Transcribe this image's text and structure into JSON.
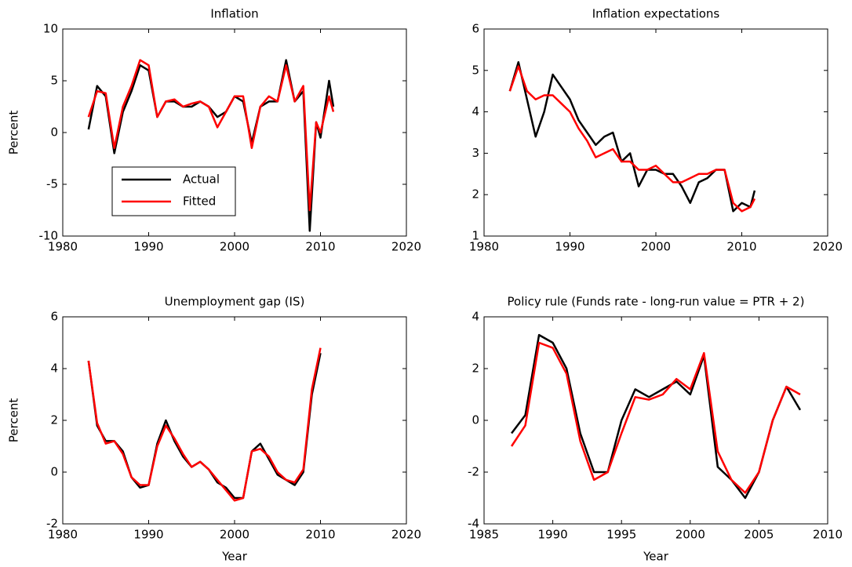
{
  "chart_data": [
    {
      "type": "line",
      "title": "Inflation",
      "ylabel": "Percent",
      "x": [
        1983,
        1984,
        1985,
        1986,
        1987,
        1988,
        1989,
        1990,
        1991,
        1992,
        1993,
        1994,
        1995,
        1996,
        1997,
        1998,
        1999,
        2000,
        2001,
        2002,
        2003,
        2004,
        2005,
        2006,
        2007,
        2008,
        2008.75,
        2009.5,
        2010,
        2011,
        2011.5
      ],
      "series": [
        {
          "name": "Actual",
          "color": "#000000",
          "values": [
            0.3,
            4.5,
            3.5,
            -2,
            2,
            4,
            6.5,
            6,
            1.5,
            3,
            3,
            2.5,
            2.5,
            3,
            2.5,
            1.5,
            2,
            3.5,
            3,
            -1,
            2.5,
            3,
            3,
            7,
            3,
            4,
            -9.5,
            1,
            -0.5,
            5,
            2.5
          ]
        },
        {
          "name": "Fitted",
          "color": "#ff0000",
          "values": [
            1.5,
            4,
            3.8,
            -1.5,
            2.5,
            4.5,
            7,
            6.5,
            1.5,
            3,
            3.2,
            2.5,
            2.8,
            3,
            2.5,
            0.5,
            2,
            3.5,
            3.5,
            -1.5,
            2.5,
            3.5,
            3,
            6.5,
            3,
            4.5,
            -7.5,
            1,
            0,
            3.5,
            2
          ]
        }
      ],
      "xlim": [
        1980,
        2020
      ],
      "xticks": [
        1980,
        1990,
        2000,
        2010,
        2020
      ],
      "ylim": [
        -10,
        10
      ],
      "yticks": [
        -10,
        -5,
        0,
        5,
        10
      ],
      "legend": "lower left"
    },
    {
      "type": "line",
      "title": "Inflation expectations",
      "x": [
        1983,
        1984,
        1985,
        1986,
        1987,
        1988,
        1989,
        1990,
        1991,
        1992,
        1993,
        1994,
        1995,
        1996,
        1997,
        1998,
        1999,
        2000,
        2001,
        2002,
        2003,
        2004,
        2005,
        2006,
        2007,
        2008,
        2009,
        2010,
        2011,
        2011.5
      ],
      "series": [
        {
          "color": "#000000",
          "values": [
            4.5,
            5.2,
            4.3,
            3.4,
            4.0,
            4.9,
            4.6,
            4.3,
            3.8,
            3.5,
            3.2,
            3.4,
            3.5,
            2.8,
            3.0,
            2.2,
            2.6,
            2.6,
            2.5,
            2.5,
            2.2,
            1.8,
            2.3,
            2.4,
            2.6,
            2.6,
            1.6,
            1.8,
            1.7,
            2.1
          ]
        },
        {
          "color": "#ff0000",
          "values": [
            4.5,
            5.1,
            4.5,
            4.3,
            4.4,
            4.4,
            4.2,
            4.0,
            3.6,
            3.3,
            2.9,
            3.0,
            3.1,
            2.8,
            2.8,
            2.6,
            2.6,
            2.7,
            2.5,
            2.3,
            2.3,
            2.4,
            2.5,
            2.5,
            2.6,
            2.6,
            1.8,
            1.6,
            1.7,
            1.9
          ]
        }
      ],
      "xlim": [
        1980,
        2020
      ],
      "xticks": [
        1980,
        1990,
        2000,
        2010,
        2020
      ],
      "ylim": [
        1,
        6
      ],
      "yticks": [
        1,
        2,
        3,
        4,
        5,
        6
      ]
    },
    {
      "type": "line",
      "title": "Unemployment gap (IS)",
      "ylabel": "Percent",
      "xlabel": "Year",
      "x": [
        1983,
        1984,
        1985,
        1986,
        1987,
        1988,
        1989,
        1990,
        1991,
        1992,
        1993,
        1994,
        1995,
        1996,
        1997,
        1998,
        1999,
        2000,
        2001,
        2002,
        2003,
        2004,
        2005,
        2006,
        2007,
        2008,
        2009,
        2010
      ],
      "series": [
        {
          "color": "#000000",
          "values": [
            4.3,
            1.8,
            1.2,
            1.2,
            0.8,
            -0.2,
            -0.6,
            -0.5,
            1.1,
            2.0,
            1.2,
            0.6,
            0.2,
            0.4,
            0.1,
            -0.4,
            -0.6,
            -1.0,
            -1.0,
            0.8,
            1.1,
            0.5,
            -0.1,
            -0.3,
            -0.5,
            0.0,
            3.0,
            4.6
          ]
        },
        {
          "color": "#ff0000",
          "values": [
            4.3,
            1.9,
            1.1,
            1.2,
            0.7,
            -0.2,
            -0.5,
            -0.5,
            1.0,
            1.8,
            1.3,
            0.7,
            0.2,
            0.4,
            0.1,
            -0.3,
            -0.7,
            -1.1,
            -1.0,
            0.8,
            0.9,
            0.6,
            0.0,
            -0.3,
            -0.4,
            0.1,
            3.2,
            4.8
          ]
        }
      ],
      "xlim": [
        1980,
        2020
      ],
      "xticks": [
        1980,
        1990,
        2000,
        2010,
        2020
      ],
      "ylim": [
        -2,
        6
      ],
      "yticks": [
        -2,
        0,
        2,
        4,
        6
      ]
    },
    {
      "type": "line",
      "title": "Policy rule (Funds rate - long-run value = PTR + 2)",
      "xlabel": "Year",
      "x": [
        1987,
        1988,
        1989,
        1990,
        1991,
        1992,
        1993,
        1994,
        1995,
        1996,
        1997,
        1998,
        1999,
        2000,
        2001,
        2002,
        2003,
        2004,
        2005,
        2006,
        2007,
        2008
      ],
      "series": [
        {
          "color": "#000000",
          "values": [
            -0.5,
            0.2,
            3.3,
            3.0,
            2.0,
            -0.5,
            -2.0,
            -2.0,
            0.0,
            1.2,
            0.9,
            1.2,
            1.5,
            1.0,
            2.5,
            -1.8,
            -2.3,
            -3.0,
            -2.0,
            0.0,
            1.3,
            0.4
          ]
        },
        {
          "color": "#ff0000",
          "values": [
            -1.0,
            -0.2,
            3.0,
            2.8,
            1.8,
            -0.8,
            -2.3,
            -2.0,
            -0.5,
            0.9,
            0.8,
            1.0,
            1.6,
            1.2,
            2.6,
            -1.2,
            -2.3,
            -2.8,
            -2.0,
            0.0,
            1.3,
            1.0
          ]
        }
      ],
      "xlim": [
        1985,
        2010
      ],
      "xticks": [
        1985,
        1990,
        1995,
        2000,
        2005,
        2010
      ],
      "ylim": [
        -4,
        4
      ],
      "yticks": [
        -4,
        -2,
        0,
        2,
        4
      ]
    }
  ]
}
